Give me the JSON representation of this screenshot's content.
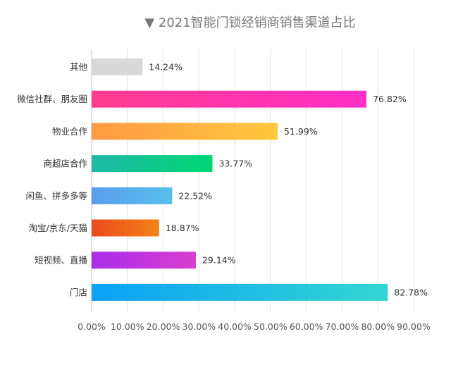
{
  "chart_data": {
    "type": "bar",
    "orientation": "horizontal",
    "title": "▼ 2021智能门锁经销商销售渠道占比",
    "xlabel": "",
    "ylabel": "",
    "xlim": [
      0,
      90
    ],
    "x_ticks": [
      "0.00%",
      "10.00%",
      "20.00%",
      "30.00%",
      "40.00%",
      "50.00%",
      "60.00%",
      "70.00%",
      "80.00%",
      "90.00%"
    ],
    "grid": true,
    "legend": "none",
    "categories": [
      "其他",
      "微信社群、朋友圈",
      "物业合作",
      "商超店合作",
      "闲鱼、拼多多等",
      "淘宝/京东/天猫",
      "短视频、直播",
      "门店"
    ],
    "values": [
      14.24,
      76.82,
      51.99,
      33.77,
      22.52,
      18.87,
      29.14,
      82.78
    ],
    "value_labels": [
      "14.24%",
      "76.82%",
      "51.99%",
      "33.77%",
      "22.52%",
      "18.87%",
      "29.14%",
      "82.78%"
    ],
    "bar_colors": [
      [
        "#d9d9d9",
        "#d9d9d9"
      ],
      [
        "#ff3d8e",
        "#ff2fc8"
      ],
      [
        "#ff9a44",
        "#ffc83d"
      ],
      [
        "#1fb9a7",
        "#00d773"
      ],
      [
        "#5b9cf0",
        "#55c0ea"
      ],
      [
        "#ec4a1e",
        "#f28316"
      ],
      [
        "#ab2ce8",
        "#d83ed1"
      ],
      [
        "#0aa2f6",
        "#34d6d2"
      ]
    ]
  }
}
